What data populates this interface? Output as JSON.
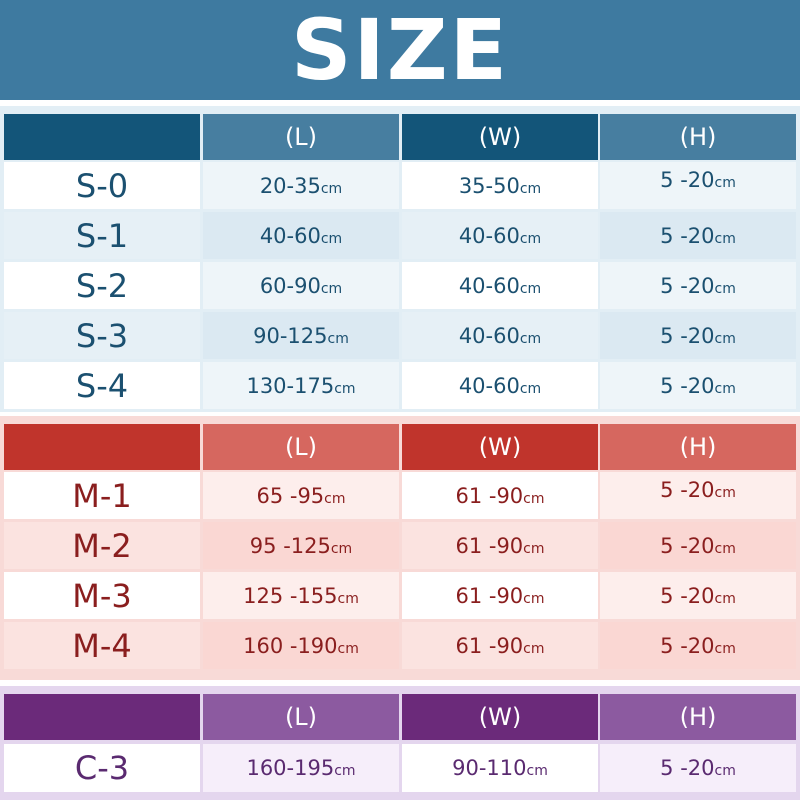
{
  "title": "SIZE",
  "colors": {
    "title_bar": "#3e7aa0",
    "s_header_dark": "#135579",
    "s_header_light": "#477ea0",
    "m_header_dark": "#c0342c",
    "m_header_light": "#d6675f",
    "c_header_dark": "#6b2a7a",
    "c_header_light": "#8c5aa0"
  },
  "unit": "cm",
  "sections": [
    {
      "id": "s",
      "headers": [
        "(L)",
        "(W)",
        "(H)"
      ],
      "rows": [
        {
          "size": "S-0",
          "l": "20-35",
          "w": "35-50",
          "h": "5 -20"
        },
        {
          "size": "S-1",
          "l": "40-60",
          "w": "40-60",
          "h": "5 -20"
        },
        {
          "size": "S-2",
          "l": "60-90",
          "w": "40-60",
          "h": "5 -20"
        },
        {
          "size": "S-3",
          "l": "90-125",
          "w": "40-60",
          "h": "5 -20"
        },
        {
          "size": "S-4",
          "l": "130-175",
          "w": "40-60",
          "h": "5 -20"
        }
      ]
    },
    {
      "id": "m",
      "headers": [
        "(L)",
        "(W)",
        "(H)"
      ],
      "rows": [
        {
          "size": "M-1",
          "l": "65 -95",
          "w": "61 -90",
          "h": "5 -20"
        },
        {
          "size": "M-2",
          "l": "95 -125",
          "w": "61 -90",
          "h": "5 -20"
        },
        {
          "size": "M-3",
          "l": "125 -155",
          "w": "61 -90",
          "h": "5 -20"
        },
        {
          "size": "M-4",
          "l": "160 -190",
          "w": "61 -90",
          "h": "5 -20"
        }
      ]
    },
    {
      "id": "c",
      "headers": [
        "(L)",
        "(W)",
        "(H)"
      ],
      "rows": [
        {
          "size": "C-3",
          "l": "160-195",
          "w": "90-110",
          "h": "5 -20"
        }
      ]
    }
  ]
}
